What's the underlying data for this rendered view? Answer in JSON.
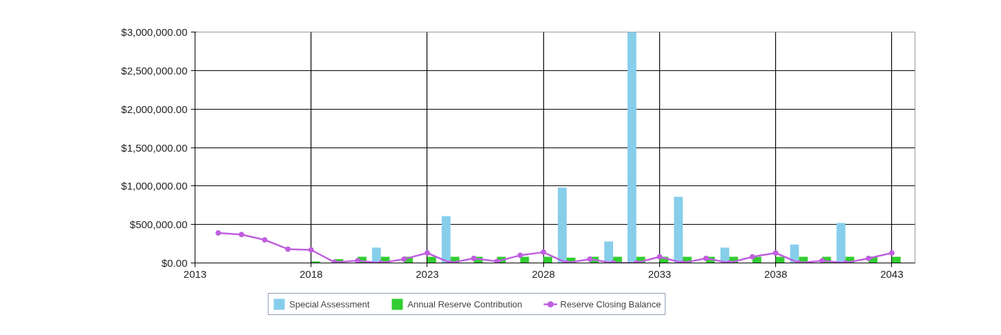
{
  "chart_data": {
    "type": "bar",
    "xlim": [
      2013,
      2044
    ],
    "xticks": [
      2013,
      2018,
      2023,
      2028,
      2033,
      2038,
      2043
    ],
    "ylim": [
      0,
      3000000
    ],
    "yticks": [
      {
        "value": 0,
        "label": "$0.00"
      },
      {
        "value": 500000,
        "label": "$500,000.00"
      },
      {
        "value": 1000000,
        "label": "$1,000,000.00"
      },
      {
        "value": 1500000,
        "label": "$1,500,000.00"
      },
      {
        "value": 2000000,
        "label": "$2,000,000.00"
      },
      {
        "value": 2500000,
        "label": "$2,500,000.00"
      },
      {
        "value": 3000000,
        "label": "$3,000,000.00"
      }
    ],
    "grid": true,
    "legend": "bottom",
    "series": [
      {
        "name": "Special Assessment",
        "color": "#87ceeb",
        "x": [
          2021,
          2024,
          2029,
          2031,
          2032,
          2034,
          2036,
          2039,
          2041
        ],
        "values": [
          200000,
          610000,
          980000,
          280000,
          3000000,
          860000,
          200000,
          240000,
          520000
        ]
      },
      {
        "name": "Annual Reserve Contribution",
        "color": "#32cd32",
        "x": [
          2018,
          2019,
          2020,
          2021,
          2022,
          2023,
          2024,
          2025,
          2026,
          2027,
          2028,
          2029,
          2030,
          2031,
          2032,
          2033,
          2034,
          2035,
          2036,
          2037,
          2038,
          2039,
          2040,
          2041,
          2042,
          2043
        ],
        "values": [
          20000,
          50000,
          80000,
          80000,
          80000,
          80000,
          80000,
          80000,
          80000,
          80000,
          80000,
          70000,
          80000,
          80000,
          80000,
          80000,
          80000,
          80000,
          80000,
          80000,
          80000,
          80000,
          80000,
          80000,
          80000,
          80000
        ]
      },
      {
        "name": "Reserve Closing Balance",
        "color": "#bf5fdf",
        "type": "line",
        "marker": "circle",
        "x": [
          2014,
          2015,
          2016,
          2017,
          2018,
          2019,
          2020,
          2021,
          2022,
          2023,
          2024,
          2025,
          2026,
          2027,
          2028,
          2029,
          2030,
          2031,
          2032,
          2033,
          2034,
          2035,
          2036,
          2037,
          2038,
          2039,
          2040,
          2041,
          2042,
          2043
        ],
        "values": [
          390000,
          370000,
          300000,
          180000,
          170000,
          10000,
          30000,
          0,
          50000,
          130000,
          0,
          60000,
          20000,
          100000,
          140000,
          0,
          50000,
          0,
          0,
          80000,
          0,
          60000,
          0,
          80000,
          130000,
          0,
          30000,
          0,
          60000,
          130000
        ]
      }
    ]
  }
}
